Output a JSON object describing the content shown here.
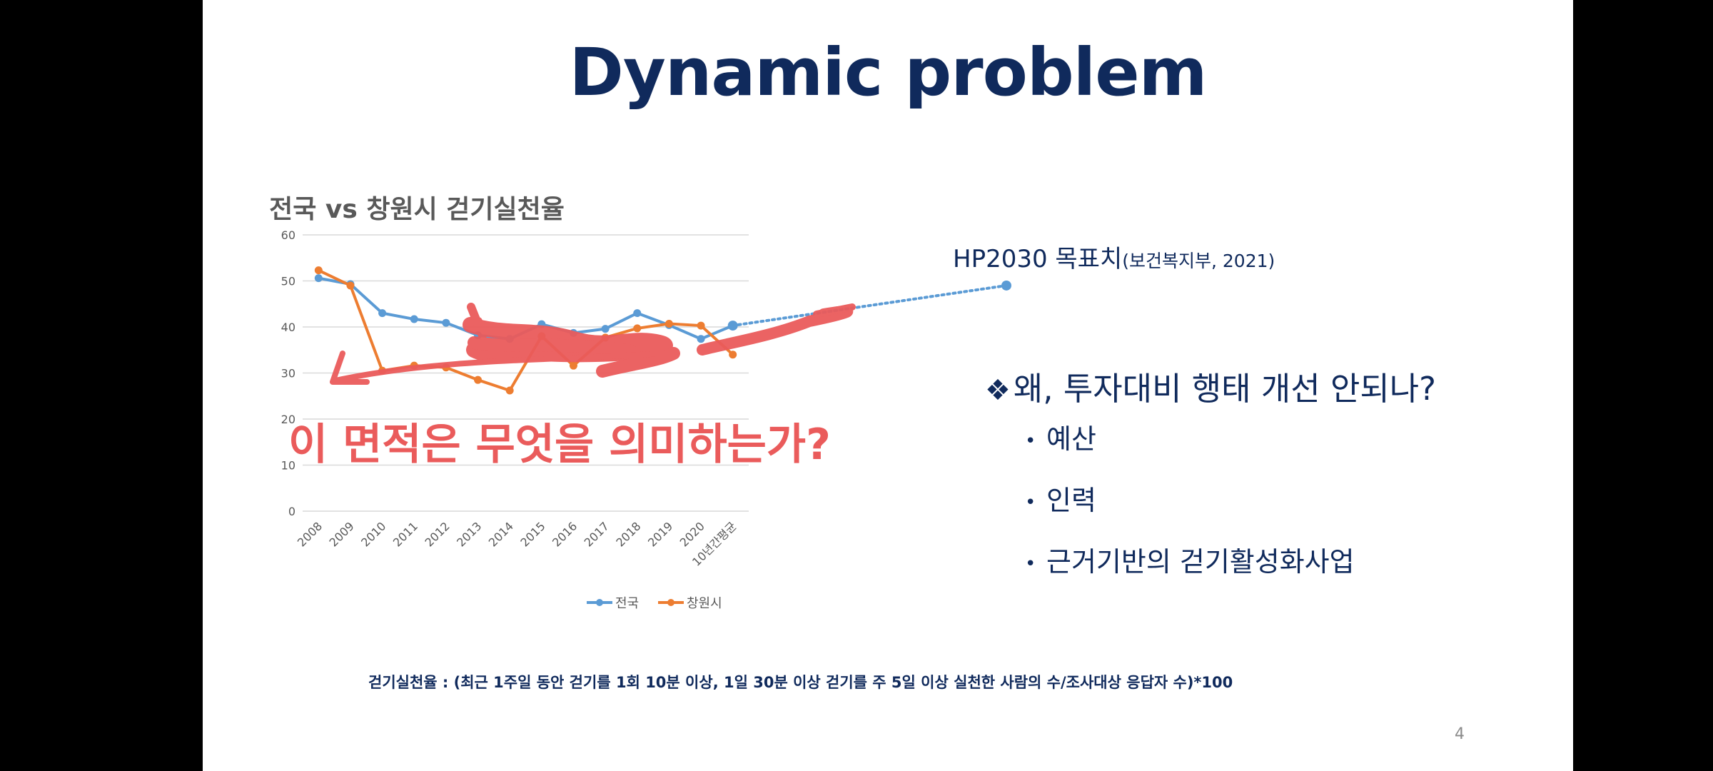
{
  "slide": {
    "title": "Dynamic problem",
    "page_number": "4",
    "formula": "걷기실천율 : (최근 1주일 동안 걷기를 1회 10분 이상, 1일 30분 이상 걷기를 주 5일 이상 실천한 사람의 수/조사대상 응답자 수)*100",
    "question": "왜, 투자대비 행태 개선 안되나?",
    "question_symbol": "❖",
    "bullets": [
      "예산",
      "인력",
      "근거기반의 걷기활성화사업"
    ],
    "bullet_symbol": "•",
    "annotation": {
      "text": "이 면적은 무엇을 의미하는가?",
      "color": "#ea5b5b"
    },
    "target": {
      "label_main": "HP2030 목표치",
      "label_source": "(보건복지부, 2021)",
      "value": 49
    }
  },
  "chart_data": {
    "type": "line",
    "title": "전국  vs  창원시 걷기실천율",
    "categories": [
      "2008",
      "2009",
      "2010",
      "2011",
      "2012",
      "2013",
      "2014",
      "2015",
      "2016",
      "2017",
      "2018",
      "2019",
      "2020",
      "10년간평균"
    ],
    "ylim": [
      0,
      60
    ],
    "yticks": [
      0,
      10,
      20,
      30,
      40,
      50,
      60
    ],
    "grid": true,
    "legend_position": "bottom",
    "series": [
      {
        "name": "전국",
        "color": "#5b9bd5",
        "values": [
          50.6,
          49.3,
          43.0,
          41.7,
          40.9,
          38.2,
          37.4,
          40.6,
          38.7,
          39.6,
          43.0,
          40.4,
          37.4,
          40.3
        ]
      },
      {
        "name": "창원시",
        "color": "#ed7d31",
        "values": [
          52.3,
          49.0,
          30.5,
          31.6,
          31.2,
          28.5,
          26.2,
          38.0,
          31.6,
          37.7,
          39.7,
          40.7,
          40.3,
          34.0
        ]
      }
    ]
  }
}
